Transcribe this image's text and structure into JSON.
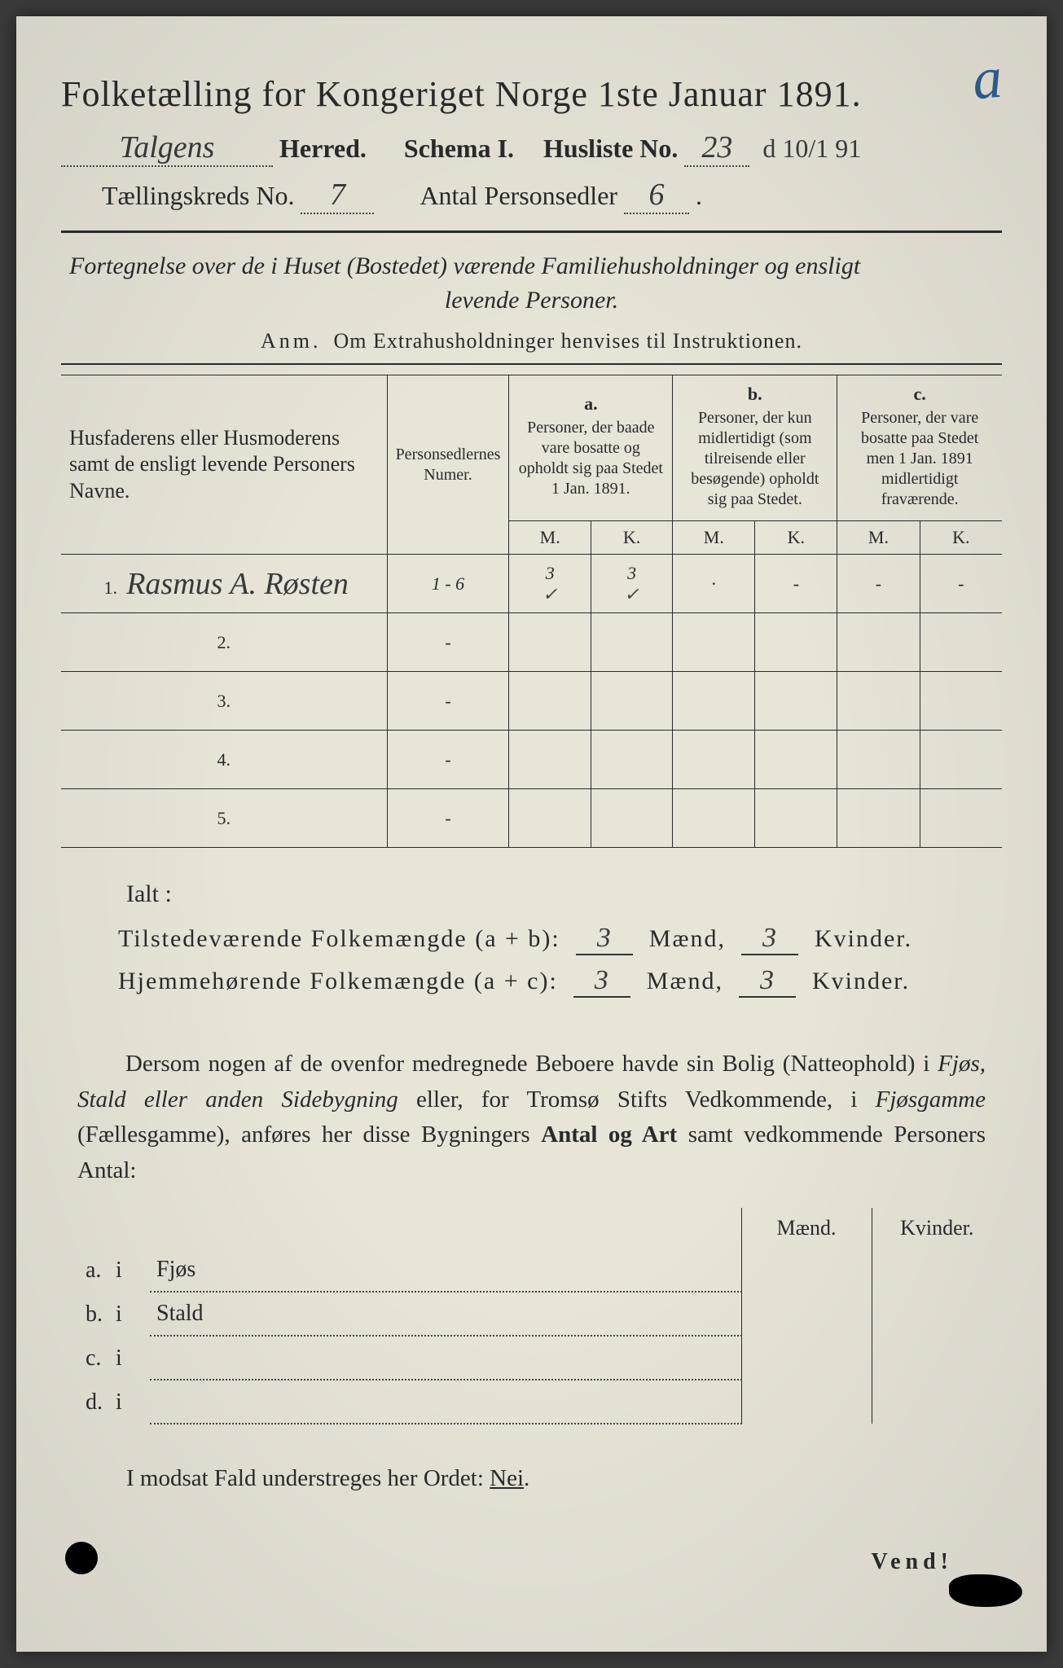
{
  "annotation_corner": "a",
  "title": "Folketælling for Kongeriget Norge 1ste Januar 1891.",
  "header": {
    "herred_value": "Talgens",
    "herred_label": "Herred.",
    "schema_label": "Schema I.",
    "husliste_label": "Husliste No.",
    "husliste_value": "23",
    "date_annotation": "d 10/1 91",
    "kreds_label": "Tællingskreds No.",
    "kreds_value": "7",
    "personsedler_label": "Antal Personsedler",
    "personsedler_value": "6"
  },
  "description": {
    "line1": "Fortegnelse over de i Huset (Bostedet) værende Familiehusholdninger og ensligt",
    "line2": "levende Personer.",
    "anm_prefix": "Anm.",
    "anm_text": "Om Extrahusholdninger henvises til Instruktionen."
  },
  "table": {
    "col1_header": "Husfaderens eller Husmoderens samt de ensligt levende Personers Navne.",
    "col2_header": "Personsedlernes Numer.",
    "groupA_label": "a.",
    "groupA_text": "Personer, der baade vare bosatte og opholdt sig paa Stedet 1 Jan. 1891.",
    "groupB_label": "b.",
    "groupB_text": "Personer, der kun midlertidigt (som tilreisende eller besøgende) opholdt sig paa Stedet.",
    "groupC_label": "c.",
    "groupC_text": "Personer, der vare bosatte paa Stedet men 1 Jan. 1891 midlertidigt fraværende.",
    "m_label": "M.",
    "k_label": "K.",
    "rows": [
      {
        "num": "1.",
        "name": "Rasmus A. Røsten",
        "sedler": "1 - 6",
        "aM": "3",
        "aK": "3",
        "bM": "·",
        "bK": "-",
        "cM": "-",
        "cK": "-"
      },
      {
        "num": "2.",
        "name": "",
        "sedler": "-",
        "aM": "",
        "aK": "",
        "bM": "",
        "bK": "",
        "cM": "",
        "cK": ""
      },
      {
        "num": "3.",
        "name": "",
        "sedler": "-",
        "aM": "",
        "aK": "",
        "bM": "",
        "bK": "",
        "cM": "",
        "cK": ""
      },
      {
        "num": "4.",
        "name": "",
        "sedler": "-",
        "aM": "",
        "aK": "",
        "bM": "",
        "bK": "",
        "cM": "",
        "cK": ""
      },
      {
        "num": "5.",
        "name": "",
        "sedler": "-",
        "aM": "",
        "aK": "",
        "bM": "",
        "bK": "",
        "cM": "",
        "cK": ""
      }
    ]
  },
  "totals": {
    "ialt_label": "Ialt :",
    "line1_label": "Tilstedeværende Folkemængde (a + b):",
    "line1_m": "3",
    "line1_k": "3",
    "line2_label": "Hjemmehørende Folkemængde (a + c):",
    "line2_m": "3",
    "line2_k": "3",
    "maend": "Mænd,",
    "kvinder": "Kvinder."
  },
  "paragraph": "Dersom nogen af de ovenfor medregnede Beboere havde sin Bolig (Natteophold) i Fjøs, Stald eller anden Sidebygning eller, for Tromsø Stifts Vedkommende, i Fjøsgamme (Fællesgamme), anføres her disse Bygningers Antal og Art samt vedkommende Personers Antal:",
  "subtable": {
    "maend_label": "Mænd.",
    "kvinder_label": "Kvinder.",
    "rows": [
      {
        "lbl": "a.",
        "i": "i",
        "text": "Fjøs"
      },
      {
        "lbl": "b.",
        "i": "i",
        "text": "Stald"
      },
      {
        "lbl": "c.",
        "i": "i",
        "text": ""
      },
      {
        "lbl": "d.",
        "i": "i",
        "text": ""
      }
    ]
  },
  "nei_line": "I modsat Fald understreges her Ordet: Nei.",
  "vend": "Vend!",
  "colors": {
    "paper": "#e8e4d8",
    "ink": "#2a2a2a",
    "pencil_blue": "#2a5a8a"
  }
}
